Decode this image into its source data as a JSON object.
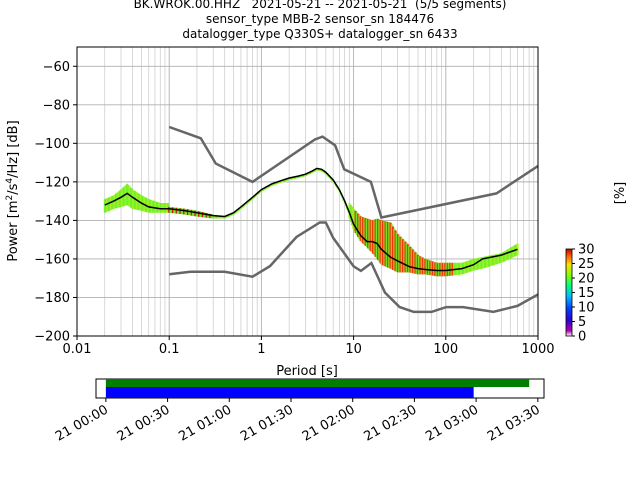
{
  "title_lines": [
    "BK.WROK.00.HHZ   2021-05-21 -- 2021-05-21  (5/5 segments)",
    "sensor_type MBB-2 sensor_sn 184476",
    "datalogger_type Q330S+ datalogger_sn 6433"
  ],
  "chart_data": {
    "type": "heatmap",
    "xlabel": "Period [s]",
    "ylabel_parts": [
      "Power [m",
      "2",
      "/s",
      "4",
      "/Hz] [dB]"
    ],
    "xscale": "log",
    "xlim": [
      0.01,
      1000
    ],
    "ylim": [
      -200,
      -50
    ],
    "xticks": [
      0.01,
      0.1,
      1,
      10,
      100,
      1000
    ],
    "xtick_labels": [
      "0.01",
      "0.1",
      "1",
      "10",
      "100",
      "1000"
    ],
    "yticks": [
      -200,
      -180,
      -160,
      -140,
      -120,
      -100,
      -80,
      -60
    ],
    "ytick_labels": [
      "−200",
      "−180",
      "−160",
      "−140",
      "−120",
      "−100",
      "−80",
      "−60"
    ],
    "grid": true,
    "colorbar": {
      "label": "[%]",
      "ticks": [
        0,
        5,
        10,
        15,
        20,
        25,
        30
      ],
      "tick_labels": [
        "0",
        "5",
        "10",
        "15",
        "20",
        "25",
        "30"
      ],
      "range": [
        0,
        30
      ]
    },
    "noise_models": [
      {
        "name": "high",
        "color": "#666666",
        "x": [
          0.1,
          0.22,
          0.32,
          0.8,
          3.8,
          4.6,
          6.3,
          7.9,
          15.4,
          20,
          354.8,
          10000
        ],
        "y": [
          -91.5,
          -97.4,
          -110.5,
          -120,
          -98,
          -96.5,
          -101,
          -113.5,
          -120,
          -138.5,
          -126,
          -80.1
        ]
      },
      {
        "name": "low",
        "color": "#666666",
        "x": [
          0.1,
          0.17,
          0.4,
          0.8,
          1.24,
          2.4,
          4.3,
          5,
          6,
          10,
          12,
          15.6,
          21.9,
          31.6,
          45,
          70,
          101,
          154,
          328,
          600,
          10000
        ],
        "y": [
          -168,
          -166.7,
          -166.7,
          -169.2,
          -163.7,
          -148.6,
          -141.1,
          -141.1,
          -149,
          -163.8,
          -166.2,
          -162.1,
          -177.5,
          -185,
          -187.5,
          -187.5,
          -185,
          -185,
          -187.5,
          -184.4,
          -151.5
        ]
      }
    ],
    "mean_curve": {
      "name": "mean",
      "color": "#000000",
      "x": [
        0.02,
        0.025,
        0.03,
        0.035,
        0.04,
        0.05,
        0.06,
        0.08,
        0.1,
        0.15,
        0.2,
        0.3,
        0.4,
        0.5,
        0.6,
        0.8,
        1,
        1.3,
        1.6,
        2,
        2.5,
        3,
        3.5,
        4,
        4.5,
        5,
        6,
        7,
        8,
        9,
        10,
        12,
        14,
        16,
        18,
        20,
        25,
        30,
        40,
        50,
        60,
        80,
        100,
        150,
        200,
        250,
        400,
        600
      ],
      "y": [
        -132,
        -130,
        -128,
        -126,
        -128,
        -131,
        -133,
        -134,
        -134,
        -135,
        -136,
        -137.5,
        -138,
        -136,
        -133,
        -128,
        -124,
        -121,
        -119.5,
        -118,
        -117,
        -116,
        -114.5,
        -113,
        -113.5,
        -115,
        -119,
        -124,
        -130,
        -136,
        -142,
        -148,
        -151,
        -151,
        -152,
        -155,
        -159,
        -161,
        -164,
        -165,
        -165.5,
        -166,
        -166,
        -165,
        -163,
        -160,
        -158,
        -155
      ]
    },
    "psd_bands": [
      {
        "x": [
          0.02,
          0.025,
          0.03,
          0.035,
          0.04,
          0.05,
          0.06,
          0.08,
          0.1
        ],
        "top": [
          -129,
          -127,
          -124,
          -121,
          -124,
          -127,
          -129,
          -131,
          -131
        ],
        "bottom": [
          -136,
          -134,
          -133,
          -132,
          -134,
          -135,
          -136,
          -136,
          -136
        ]
      },
      {
        "x": [
          0.1,
          0.15,
          0.2,
          0.3,
          0.4,
          0.5,
          0.6,
          0.8,
          1,
          1.3,
          1.6,
          2,
          2.5,
          3,
          3.5,
          4,
          4.5,
          5,
          6,
          7,
          8,
          9
        ],
        "top": [
          -133,
          -134,
          -135,
          -137,
          -138,
          -136,
          -133,
          -128,
          -124,
          -121,
          -119.5,
          -118,
          -117,
          -116,
          -114.5,
          -113,
          -113.5,
          -115,
          -119,
          -124,
          -130,
          -136
        ],
        "bottom": [
          -136,
          -137,
          -138,
          -139,
          -139,
          -137,
          -134,
          -129,
          -125,
          -122,
          -120.5,
          -119,
          -118,
          -117,
          -115.5,
          -114,
          -114.5,
          -116,
          -120,
          -125,
          -131,
          -137
        ]
      },
      {
        "x": [
          9,
          10,
          12,
          14,
          16,
          18,
          20,
          25,
          30,
          40,
          50,
          60,
          80,
          100,
          150,
          200,
          250,
          400,
          600
        ],
        "top": [
          -131,
          -134,
          -138,
          -139,
          -140,
          -139,
          -140,
          -141,
          -147,
          -153,
          -158,
          -160,
          -162,
          -162,
          -162,
          -160,
          -159,
          -157,
          -152
        ],
        "bottom": [
          -139,
          -145,
          -151,
          -154,
          -157,
          -160,
          -163,
          -165,
          -167,
          -167,
          -168,
          -168,
          -169,
          -169,
          -168,
          -166,
          -165,
          -162,
          -158
        ]
      }
    ],
    "timeline": {
      "tick_labels": [
        "21 00:00",
        "21 00:30",
        "21 01:00",
        "21 01:30",
        "21 02:00",
        "21 02:30",
        "21 03:00",
        "21 03:30"
      ],
      "tick_hours": [
        0,
        0.5,
        1,
        1.5,
        2,
        2.5,
        3,
        3.5
      ],
      "range_hours": [
        -0.08,
        3.55
      ],
      "data_coverage": {
        "color": "#008000",
        "start_hours": 0,
        "end_hours": 3.43
      },
      "psd_coverage": {
        "color": "#0000ff",
        "start_hours": 0,
        "end_hours": 2.98
      }
    }
  }
}
